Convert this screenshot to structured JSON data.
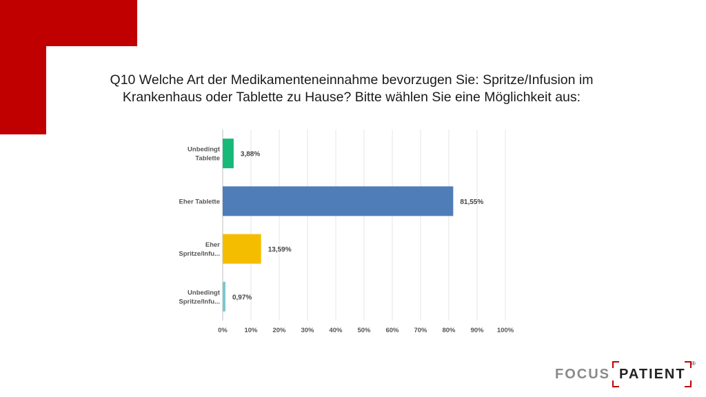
{
  "colors": {
    "brand_red": "#c00000",
    "bar_colors": [
      "#17b978",
      "#4f7db8",
      "#f5bd00",
      "#7cc6cf"
    ]
  },
  "title": {
    "line1": "Q10 Welche Art der Medikamenteneinnahme bevorzugen Sie: Spritze/Infusion im",
    "line2": "Krankenhaus oder Tablette zu Hause? Bitte wählen Sie eine Möglichkeit aus:"
  },
  "chart_data": {
    "type": "bar",
    "orientation": "horizontal",
    "categories": [
      [
        "Unbedingt",
        "Tablette"
      ],
      [
        "Eher Tablette"
      ],
      [
        "Eher",
        "Spritze/Infu..."
      ],
      [
        "Unbedingt",
        "Spritze/Infu..."
      ]
    ],
    "values": [
      3.88,
      81.55,
      13.59,
      0.97
    ],
    "data_labels": [
      "3,88%",
      "81,55%",
      "13,59%",
      "0,97%"
    ],
    "xticks": [
      "0%",
      "10%",
      "20%",
      "30%",
      "40%",
      "50%",
      "60%",
      "70%",
      "80%",
      "90%",
      "100%"
    ],
    "xlim": [
      0,
      100
    ],
    "grid": true,
    "legend": "none"
  },
  "logo": {
    "focus": "FOCUS",
    "patient": "PATIENT",
    "registered": "®"
  }
}
